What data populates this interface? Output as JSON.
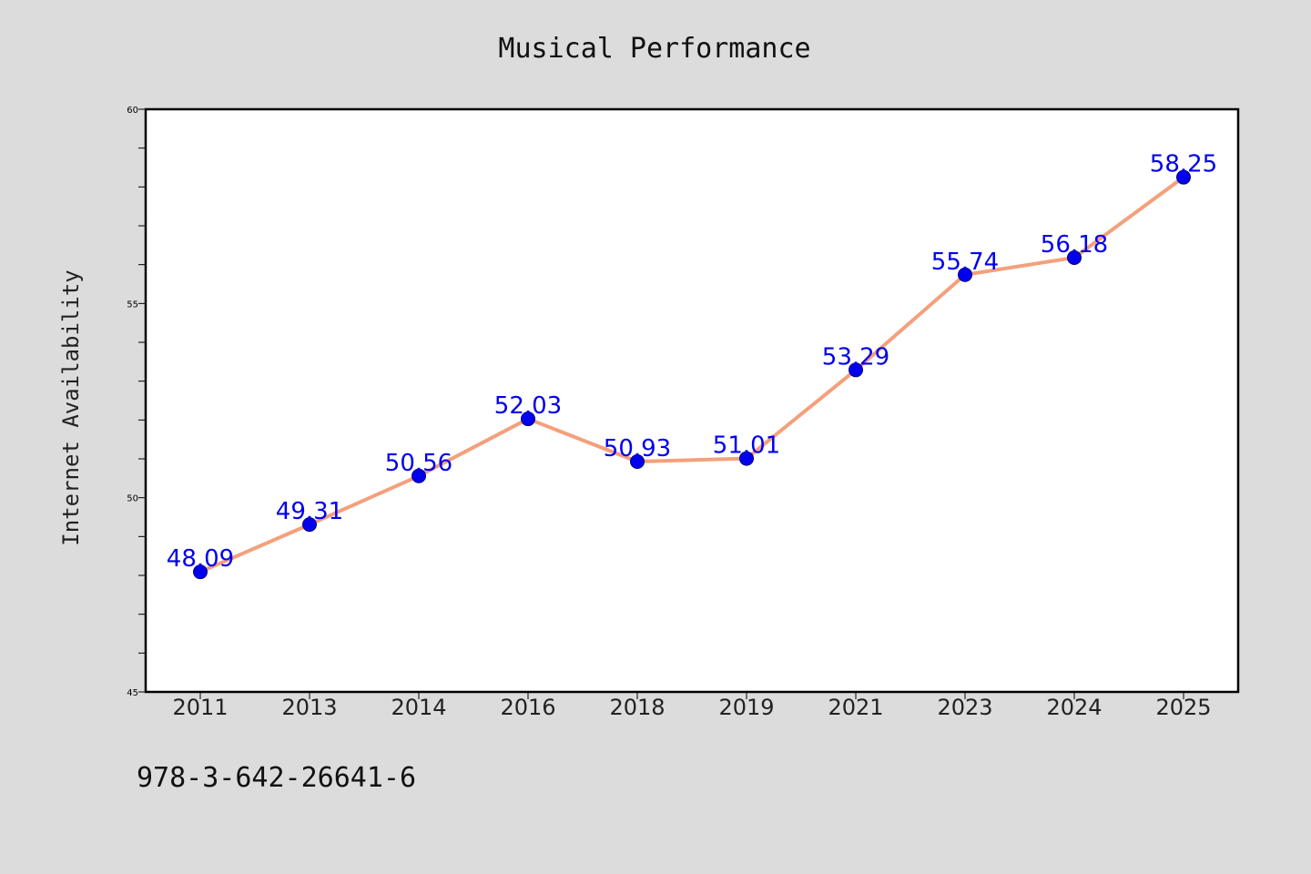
{
  "chart_data": {
    "type": "line",
    "title": "Musical Performance",
    "xlabel": "",
    "ylabel": "Internet Availability",
    "categories": [
      "2011",
      "2013",
      "2014",
      "2016",
      "2018",
      "2019",
      "2021",
      "2023",
      "2024",
      "2025"
    ],
    "series": [
      {
        "values": [
          48.09,
          49.31,
          50.56,
          52.03,
          50.93,
          51.01,
          53.29,
          55.74,
          56.18,
          58.25
        ]
      }
    ],
    "data_labels": [
      "48.09",
      "49.31",
      "50.56",
      "52.03",
      "50.93",
      "51.01",
      "53.29",
      "55.74",
      "56.18",
      "58.25"
    ],
    "ylim": [
      45,
      60
    ],
    "y_ticks": [
      "45",
      "50",
      "55",
      "60"
    ],
    "y_minor_step": 1,
    "grid": false,
    "legend": "none",
    "line_color": "#f4a07c",
    "marker_color": "#0000ee",
    "label_color": "#0000ee"
  },
  "footer": {
    "code": "978-3-642-26641-6"
  }
}
